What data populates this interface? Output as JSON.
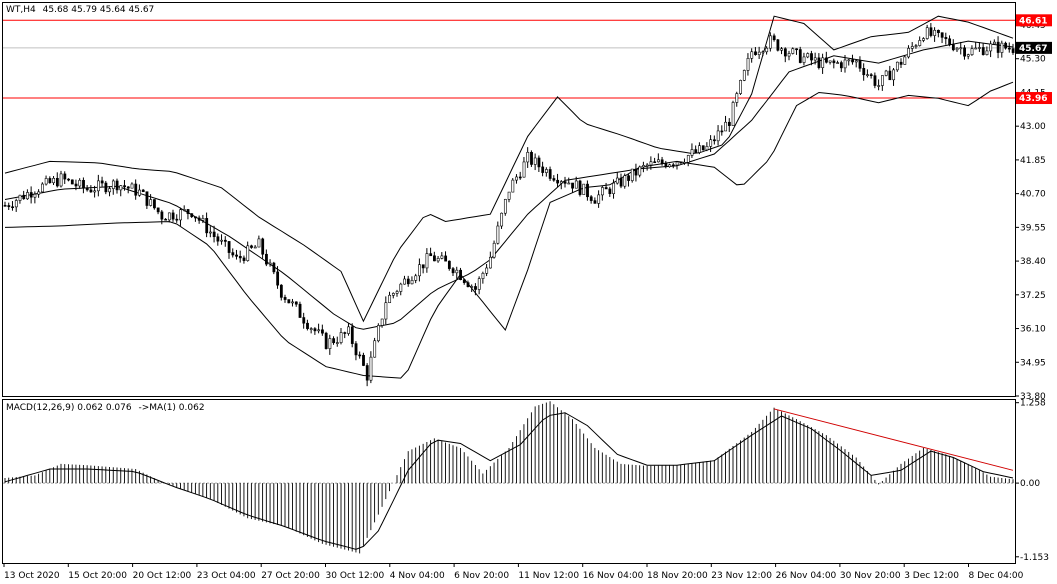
{
  "header": {
    "symbol": "WT,H4",
    "ohlc": "45.68 45.79 45.64 45.67"
  },
  "macd_header": {
    "label": "MACD(12,26,9) 0.062 0.076",
    "ma_label": "->MA(1) 0.062"
  },
  "colors": {
    "level_line": "#ff0000",
    "level_tag_bg": "#ff0000",
    "current_tag_bg": "#000000",
    "trend_line": "#d00000",
    "grid_line": "#c0c0c0"
  },
  "price_labels": {
    "level_high": "46.61",
    "level_low": "43.96",
    "current": "45.67"
  },
  "chart_data": [
    {
      "type": "candlestick",
      "panel": "price",
      "ylim": [
        33.8,
        47.2
      ],
      "yticks": [
        "46.45",
        "45.30",
        "44.15",
        "43.00",
        "41.85",
        "40.70",
        "39.55",
        "38.40",
        "37.25",
        "36.10",
        "34.95",
        "33.80"
      ],
      "x_labels": [
        "13 Oct 2020",
        "15 Oct 20:00",
        "20 Oct 12:00",
        "23 Oct 04:00",
        "27 Oct 20:00",
        "30 Oct 12:00",
        "4 Nov 04:00",
        "6 Nov 20:00",
        "11 Nov 12:00",
        "16 Nov 04:00",
        "18 Nov 20:00",
        "23 Nov 12:00",
        "26 Nov 04:00",
        "30 Nov 20:00",
        "3 Dec 12:00",
        "8 Dec 04:00"
      ],
      "bar_count": 205,
      "horizontal_levels": [
        46.61,
        43.96
      ],
      "close_anchors": [
        [
          0,
          40.3
        ],
        [
          8,
          40.85
        ],
        [
          15,
          41.2
        ],
        [
          22,
          40.85
        ],
        [
          30,
          41.05
        ],
        [
          36,
          40.75
        ],
        [
          42,
          39.95
        ],
        [
          50,
          40.1
        ],
        [
          56,
          39.25
        ],
        [
          62,
          38.45
        ],
        [
          68,
          38.95
        ],
        [
          74,
          37.35
        ],
        [
          80,
          36.45
        ],
        [
          86,
          35.6
        ],
        [
          92,
          35.95
        ],
        [
          97,
          34.5
        ],
        [
          102,
          37.05
        ],
        [
          108,
          37.85
        ],
        [
          114,
          38.55
        ],
        [
          120,
          38.2
        ],
        [
          126,
          37.45
        ],
        [
          130,
          38.55
        ],
        [
          135,
          40.85
        ],
        [
          140,
          41.9
        ],
        [
          146,
          41.4
        ],
        [
          152,
          41.05
        ],
        [
          158,
          40.55
        ],
        [
          165,
          41.1
        ],
        [
          172,
          41.65
        ],
        [
          180,
          41.85
        ],
        [
          188,
          42.25
        ],
        [
          194,
          43.2
        ],
        [
          200,
          45.55
        ],
        [
          205,
          45.9
        ],
        [
          212,
          45.4
        ],
        [
          220,
          45.1
        ],
        [
          228,
          45.2
        ],
        [
          234,
          44.4
        ],
        [
          240,
          45.2
        ],
        [
          246,
          46.2
        ],
        [
          252,
          45.9
        ],
        [
          258,
          45.55
        ],
        [
          264,
          45.7
        ],
        [
          270,
          45.67
        ]
      ],
      "bollinger_bands": {
        "middle": [
          [
            0,
            40.5
          ],
          [
            15,
            40.85
          ],
          [
            30,
            40.95
          ],
          [
            45,
            40.35
          ],
          [
            60,
            39.25
          ],
          [
            75,
            37.95
          ],
          [
            88,
            36.6
          ],
          [
            95,
            36.05
          ],
          [
            105,
            36.3
          ],
          [
            115,
            37.4
          ],
          [
            125,
            38.0
          ],
          [
            130,
            38.45
          ],
          [
            140,
            40.0
          ],
          [
            150,
            41.15
          ],
          [
            160,
            41.35
          ],
          [
            170,
            41.55
          ],
          [
            180,
            41.65
          ],
          [
            190,
            42.05
          ],
          [
            200,
            43.2
          ],
          [
            210,
            44.85
          ],
          [
            222,
            45.4
          ],
          [
            234,
            45.15
          ],
          [
            246,
            45.6
          ],
          [
            258,
            45.9
          ],
          [
            270,
            45.7
          ]
        ],
        "upper": [
          [
            0,
            41.4
          ],
          [
            12,
            41.8
          ],
          [
            25,
            41.75
          ],
          [
            35,
            41.55
          ],
          [
            45,
            41.45
          ],
          [
            58,
            40.9
          ],
          [
            68,
            39.9
          ],
          [
            80,
            38.95
          ],
          [
            90,
            38.05
          ],
          [
            96,
            36.35
          ],
          [
            105,
            38.7
          ],
          [
            113,
            40.05
          ],
          [
            118,
            39.75
          ],
          [
            130,
            40.0
          ],
          [
            140,
            42.65
          ],
          [
            148,
            44.0
          ],
          [
            155,
            43.1
          ],
          [
            165,
            42.7
          ],
          [
            175,
            42.25
          ],
          [
            185,
            42.05
          ],
          [
            193,
            42.4
          ],
          [
            200,
            44.1
          ],
          [
            206,
            46.75
          ],
          [
            214,
            46.5
          ],
          [
            222,
            45.6
          ],
          [
            232,
            46.05
          ],
          [
            242,
            46.2
          ],
          [
            250,
            46.75
          ],
          [
            258,
            46.55
          ],
          [
            270,
            46.0
          ]
        ],
        "lower": [
          [
            0,
            39.55
          ],
          [
            15,
            39.6
          ],
          [
            30,
            39.7
          ],
          [
            45,
            39.75
          ],
          [
            55,
            38.9
          ],
          [
            65,
            37.2
          ],
          [
            75,
            35.7
          ],
          [
            86,
            34.8
          ],
          [
            96,
            34.5
          ],
          [
            107,
            34.4
          ],
          [
            115,
            36.7
          ],
          [
            122,
            37.95
          ],
          [
            128,
            37.0
          ],
          [
            134,
            36.05
          ],
          [
            140,
            38.1
          ],
          [
            146,
            40.4
          ],
          [
            155,
            40.9
          ],
          [
            162,
            41.0
          ],
          [
            170,
            41.6
          ],
          [
            180,
            41.8
          ],
          [
            190,
            41.6
          ],
          [
            197,
            40.9
          ],
          [
            205,
            41.9
          ],
          [
            212,
            43.7
          ],
          [
            218,
            44.15
          ],
          [
            225,
            44.05
          ],
          [
            234,
            43.8
          ],
          [
            242,
            44.05
          ],
          [
            250,
            43.95
          ],
          [
            258,
            43.7
          ],
          [
            264,
            44.2
          ],
          [
            270,
            44.5
          ]
        ]
      }
    },
    {
      "type": "histogram",
      "panel": "MACD(12,26,9)",
      "ylim": [
        -1.25,
        1.3
      ],
      "yticks": [
        "1.258",
        "0.00",
        "-1.153"
      ],
      "series": [
        {
          "name": "MACD",
          "values": [
            [
              0,
              0.08
            ],
            [
              8,
              0.12
            ],
            [
              15,
              0.3
            ],
            [
              22,
              0.28
            ],
            [
              35,
              0.22
            ],
            [
              42,
              0.02
            ],
            [
              55,
              -0.25
            ],
            [
              65,
              -0.55
            ],
            [
              75,
              -0.68
            ],
            [
              85,
              -0.95
            ],
            [
              95,
              -1.1
            ],
            [
              102,
              -0.25
            ],
            [
              108,
              0.5
            ],
            [
              115,
              0.7
            ],
            [
              122,
              0.55
            ],
            [
              128,
              0.15
            ],
            [
              135,
              0.55
            ],
            [
              142,
              1.2
            ],
            [
              146,
              1.28
            ],
            [
              152,
              1.0
            ],
            [
              158,
              0.55
            ],
            [
              165,
              0.3
            ],
            [
              172,
              0.27
            ],
            [
              180,
              0.28
            ],
            [
              190,
              0.36
            ],
            [
              200,
              0.8
            ],
            [
              206,
              1.18
            ],
            [
              212,
              1.0
            ],
            [
              220,
              0.75
            ],
            [
              228,
              0.4
            ],
            [
              234,
              -0.02
            ],
            [
              240,
              0.3
            ],
            [
              246,
              0.55
            ],
            [
              252,
              0.45
            ],
            [
              258,
              0.3
            ],
            [
              264,
              0.1
            ],
            [
              270,
              0.06
            ]
          ]
        },
        {
          "name": "signal",
          "values": [
            [
              0,
              0.02
            ],
            [
              12,
              0.22
            ],
            [
              22,
              0.22
            ],
            [
              35,
              0.18
            ],
            [
              45,
              -0.05
            ],
            [
              55,
              -0.25
            ],
            [
              65,
              -0.5
            ],
            [
              75,
              -0.68
            ],
            [
              85,
              -0.9
            ],
            [
              95,
              -1.05
            ],
            [
              100,
              -0.75
            ],
            [
              108,
              0.2
            ],
            [
              115,
              0.68
            ],
            [
              122,
              0.62
            ],
            [
              130,
              0.35
            ],
            [
              138,
              0.6
            ],
            [
              145,
              1.05
            ],
            [
              150,
              1.1
            ],
            [
              156,
              0.9
            ],
            [
              164,
              0.45
            ],
            [
              172,
              0.28
            ],
            [
              180,
              0.28
            ],
            [
              190,
              0.35
            ],
            [
              200,
              0.75
            ],
            [
              208,
              1.05
            ],
            [
              216,
              0.85
            ],
            [
              224,
              0.5
            ],
            [
              232,
              0.12
            ],
            [
              240,
              0.2
            ],
            [
              248,
              0.5
            ],
            [
              254,
              0.4
            ],
            [
              262,
              0.18
            ],
            [
              270,
              0.08
            ]
          ]
        }
      ],
      "trend_line": [
        [
          206,
          1.16
        ],
        [
          270,
          0.2
        ]
      ]
    }
  ]
}
